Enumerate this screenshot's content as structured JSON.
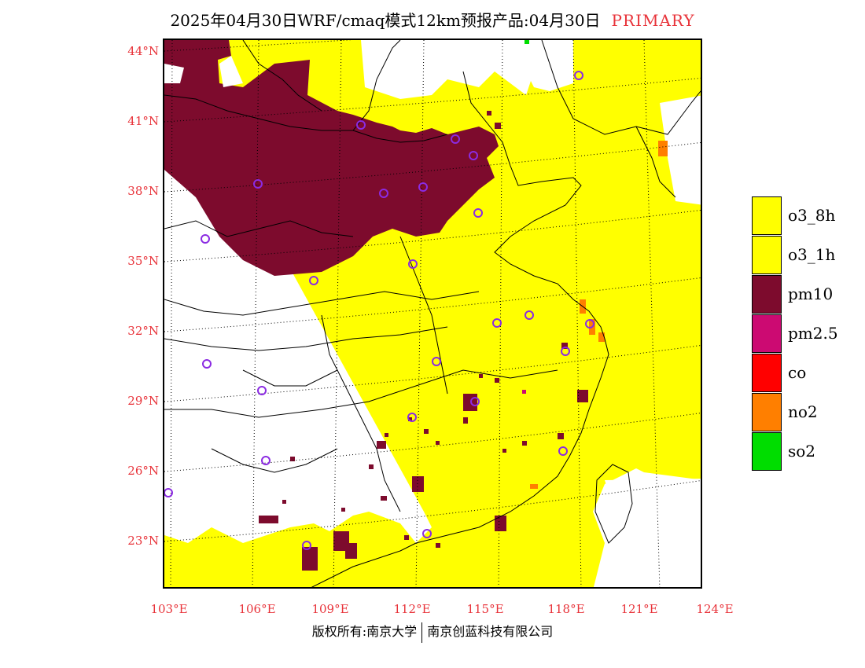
{
  "title": {
    "main": "2025年04月30日WRF/cmaq模式12km预报产品:04月30日",
    "tag": "PRIMARY"
  },
  "map": {
    "lat_labels": [
      "44°N",
      "41°N",
      "38°N",
      "35°N",
      "32°N",
      "29°N",
      "26°N",
      "23°N"
    ],
    "lon_labels": [
      "103°E",
      "106°E",
      "109°E",
      "112°E",
      "115°E",
      "118°E",
      "121°E",
      "124°E"
    ],
    "grid": true
  },
  "legend": {
    "items": [
      {
        "label": "o3_8h",
        "color": "#ffff00"
      },
      {
        "label": "o3_1h",
        "color": "#ffff00"
      },
      {
        "label": "pm10",
        "color": "#7d0b2d"
      },
      {
        "label": "pm2.5",
        "color": "#cc0a72"
      },
      {
        "label": "co",
        "color": "#ff0000"
      },
      {
        "label": "no2",
        "color": "#ff7f00"
      },
      {
        "label": "so2",
        "color": "#00dd00"
      }
    ]
  },
  "colors": {
    "o3": "#ffff00",
    "pm10": "#7d0b2d",
    "pm25": "#cc0a72",
    "no2": "#ff7f00",
    "so2": "#00dd00",
    "station": "#8b2be2",
    "label": "#e8333a"
  },
  "credit": {
    "left": "版权所有:南京大学",
    "right": "南京创蓝科技有限公司"
  }
}
